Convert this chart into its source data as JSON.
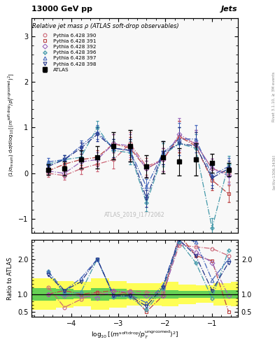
{
  "title_top": "13000 GeV pp",
  "title_right": "Jets",
  "plot_title": "Relative jet mass ρ (ATLAS soft-drop observables)",
  "watermark": "ATLAS_2019_I1772062",
  "right_label": "Rivet 3.1.10, ≥ 3M events",
  "arxiv_label": "[arXiv:1306.3436]",
  "ylabel_ratio": "Ratio to ATLAS",
  "ylim_main": [
    -1.3,
    3.4
  ],
  "ylim_ratio": [
    0.35,
    2.55
  ],
  "yticks_main": [
    -1,
    0,
    1,
    2,
    3
  ],
  "yticks_ratio": [
    0.5,
    1,
    2
  ],
  "xlim": [
    -4.85,
    -0.45
  ],
  "xticks": [
    -4,
    -3,
    -2,
    -1
  ],
  "atlas_x": [
    -4.5,
    -4.15,
    -3.8,
    -3.45,
    -3.1,
    -2.75,
    -2.4,
    -2.05,
    -1.7,
    -1.35,
    -1.0,
    -0.65
  ],
  "atlas_y": [
    0.08,
    0.1,
    0.3,
    0.35,
    0.6,
    0.6,
    0.15,
    0.35,
    0.25,
    0.3,
    0.22,
    0.08
  ],
  "atlas_yerr": [
    0.12,
    0.15,
    0.2,
    0.25,
    0.3,
    0.35,
    0.25,
    0.35,
    0.3,
    0.35,
    0.2,
    0.15
  ],
  "mc_x": [
    -4.5,
    -4.15,
    -3.8,
    -3.45,
    -3.1,
    -2.75,
    -2.4,
    -2.05,
    -1.7,
    -1.35,
    -1.0,
    -0.65
  ],
  "py390_y": [
    0.0,
    -0.05,
    0.1,
    0.2,
    0.3,
    0.65,
    0.15,
    0.3,
    0.8,
    0.65,
    0.1,
    0.0
  ],
  "py391_y": [
    0.05,
    0.2,
    0.3,
    0.35,
    0.65,
    0.55,
    0.1,
    0.3,
    0.8,
    0.6,
    -0.15,
    -0.45
  ],
  "py392_y": [
    0.05,
    0.0,
    0.25,
    0.3,
    0.65,
    0.6,
    0.1,
    0.3,
    0.85,
    0.65,
    0.1,
    -0.05
  ],
  "py396_y": [
    0.2,
    0.3,
    0.35,
    1.0,
    0.5,
    0.45,
    -0.65,
    0.4,
    0.65,
    0.55,
    -1.2,
    0.2
  ],
  "py397_y": [
    0.25,
    0.3,
    0.6,
    0.9,
    0.55,
    0.5,
    -0.3,
    0.45,
    0.75,
    0.75,
    -0.05,
    0.15
  ],
  "py398_y": [
    0.15,
    0.3,
    0.55,
    0.85,
    0.55,
    0.5,
    -0.55,
    0.45,
    0.65,
    0.6,
    -0.1,
    0.1
  ],
  "py390_yerr": [
    0.08,
    0.09,
    0.12,
    0.15,
    0.2,
    0.25,
    0.18,
    0.25,
    0.35,
    0.3,
    0.22,
    0.18
  ],
  "py391_yerr": [
    0.08,
    0.09,
    0.12,
    0.15,
    0.2,
    0.25,
    0.18,
    0.25,
    0.35,
    0.3,
    0.22,
    0.18
  ],
  "py392_yerr": [
    0.08,
    0.09,
    0.12,
    0.15,
    0.2,
    0.25,
    0.18,
    0.25,
    0.35,
    0.3,
    0.22,
    0.18
  ],
  "py396_yerr": [
    0.08,
    0.09,
    0.12,
    0.15,
    0.2,
    0.25,
    0.18,
    0.25,
    0.35,
    0.3,
    0.22,
    0.18
  ],
  "py397_yerr": [
    0.08,
    0.09,
    0.12,
    0.15,
    0.2,
    0.25,
    0.18,
    0.25,
    0.35,
    0.3,
    0.22,
    0.18
  ],
  "py398_yerr": [
    0.08,
    0.09,
    0.12,
    0.15,
    0.2,
    0.25,
    0.18,
    0.25,
    0.35,
    0.3,
    0.22,
    0.18
  ],
  "color_390": "#cc6677",
  "color_391": "#bb4444",
  "color_392": "#9966bb",
  "color_396": "#4499aa",
  "color_397": "#4466bb",
  "color_398": "#223388",
  "ratio_390": [
    1.2,
    0.62,
    0.85,
    1.05,
    0.95,
    1.1,
    1.05,
    1.05,
    2.4,
    2.35,
    2.3,
    2.1
  ],
  "ratio_391": [
    1.0,
    1.1,
    1.0,
    1.05,
    1.1,
    1.0,
    0.5,
    0.95,
    2.7,
    2.1,
    1.95,
    0.5
  ],
  "ratio_392": [
    1.0,
    0.95,
    0.95,
    0.9,
    1.1,
    1.05,
    0.95,
    0.95,
    2.5,
    2.2,
    1.9,
    0.95
  ],
  "ratio_396": [
    1.65,
    1.0,
    1.05,
    2.0,
    0.92,
    0.92,
    0.55,
    1.15,
    2.5,
    1.9,
    0.88,
    2.25
  ],
  "ratio_397": [
    1.65,
    1.1,
    1.45,
    2.0,
    0.97,
    0.98,
    0.75,
    1.25,
    2.6,
    2.5,
    1.4,
    2.0
  ],
  "ratio_398": [
    1.55,
    1.1,
    1.35,
    2.0,
    0.95,
    0.95,
    0.65,
    1.2,
    2.55,
    2.1,
    1.1,
    1.9
  ],
  "band_edges": [
    -4.85,
    -4.33,
    -3.95,
    -3.58,
    -3.2,
    -2.83,
    -2.45,
    -2.08,
    -1.72,
    -1.35,
    -0.97,
    -0.6,
    -0.45
  ],
  "band_green": [
    0.18,
    0.15,
    0.12,
    0.18,
    0.15,
    0.12,
    0.12,
    0.12,
    0.1,
    0.1,
    0.12,
    0.12
  ],
  "band_yellow": [
    0.45,
    0.38,
    0.35,
    0.45,
    0.38,
    0.32,
    0.32,
    0.35,
    0.28,
    0.25,
    0.32,
    0.35
  ],
  "bg_color": "#f8f8f8"
}
